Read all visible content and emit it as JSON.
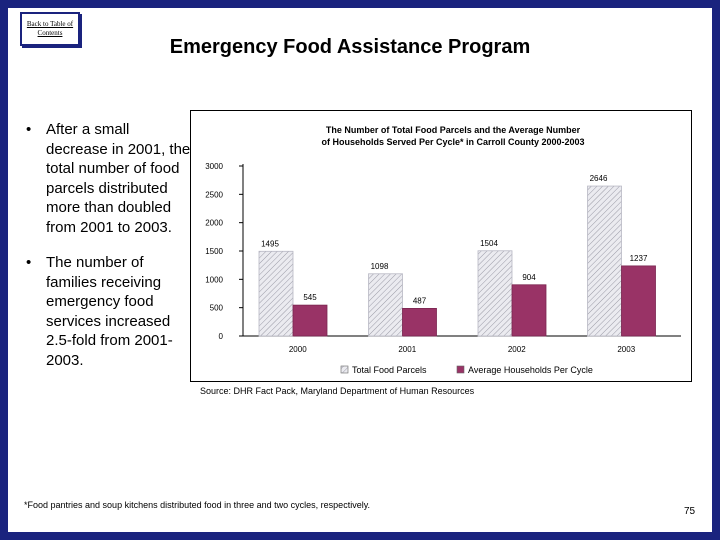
{
  "nav": {
    "back_link": "Back to Table of Contents"
  },
  "header": {
    "title": "Emergency Food Assistance Program"
  },
  "bullets": [
    "After a small decrease in 2001, the total number of food parcels distributed more than doubled from 2001 to 2003.",
    "The number of families receiving emergency food services increased 2.5-fold from 2001-2003."
  ],
  "bullet_symbol": "•",
  "chart_data": {
    "type": "bar",
    "title_lines": [
      "The Number of Total Food Parcels and the Average Number",
      "of Households Served Per Cycle* in Carroll County 2000-2003"
    ],
    "categories": [
      "2000",
      "2001",
      "2002",
      "2003"
    ],
    "series": [
      {
        "name": "Total Food Parcels",
        "values": [
          1495,
          1098,
          1504,
          2646
        ],
        "color": "#e3e3ea"
      },
      {
        "name": "Average Households Per Cycle",
        "values": [
          545,
          487,
          904,
          1237
        ],
        "color": "#993366"
      }
    ],
    "ylim": [
      0,
      3000
    ],
    "yticks": [
      0,
      500,
      1000,
      1500,
      2000,
      2500,
      3000
    ],
    "legend_position": "bottom"
  },
  "source": "Source: DHR Fact Pack, Maryland Department of Human Resources",
  "footnote": "*Food pantries and soup kitchens distributed food in three and two cycles, respectively.",
  "page_number": "75"
}
